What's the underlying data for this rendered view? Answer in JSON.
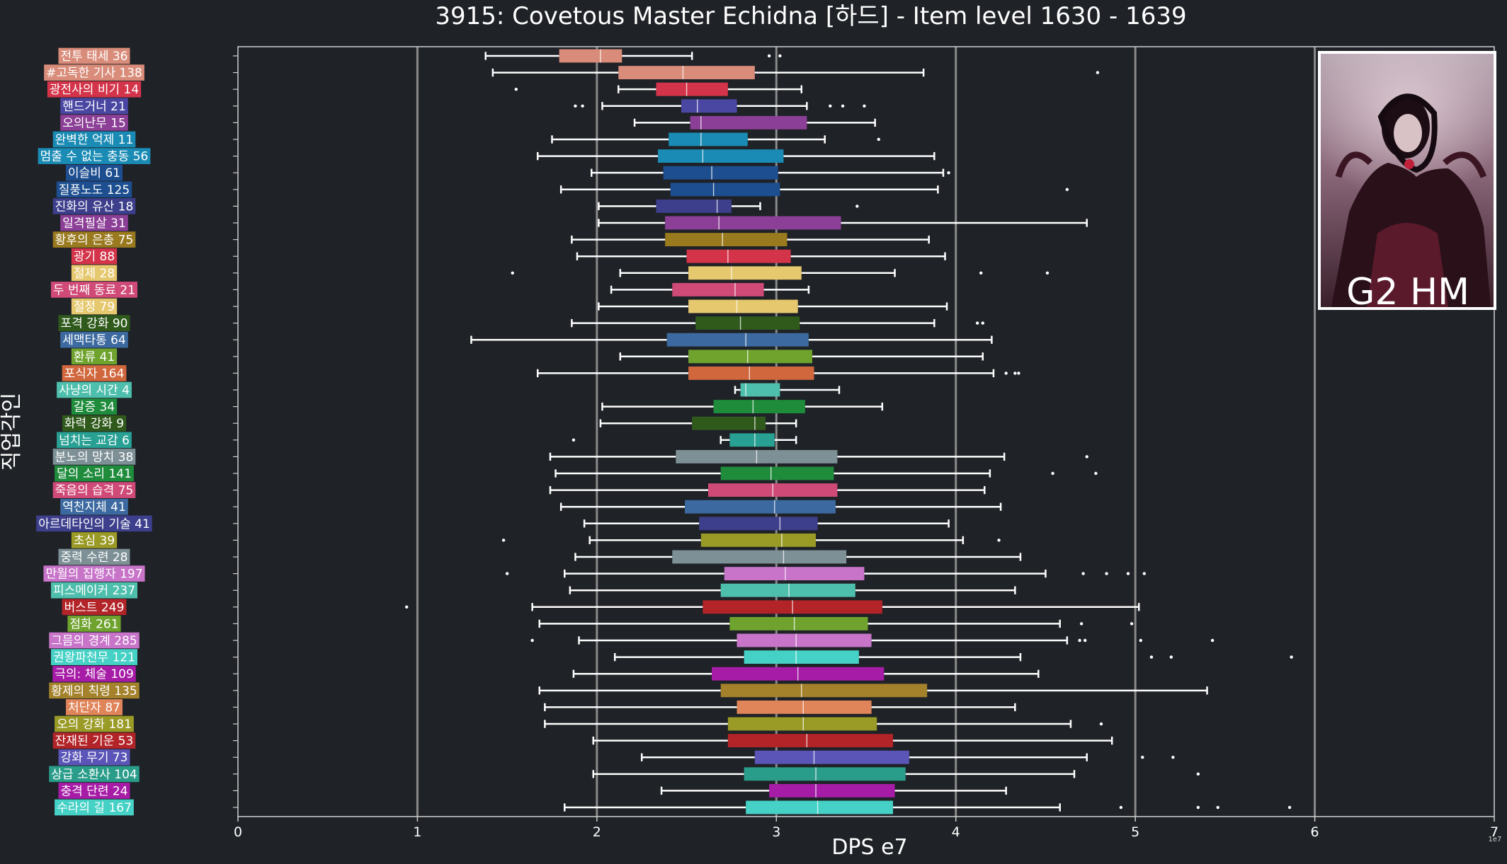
{
  "chart_data": {
    "type": "boxplot",
    "orientation": "horizontal",
    "title": "3915: Covetous Master Echidna [하드] - Item level 1630 - 1639",
    "xlabel": "DPS e7",
    "ylabel": "직업각인",
    "x_scale_note": "1e7",
    "xlim": [
      0,
      7
    ],
    "x_ticks": [
      0,
      1,
      2,
      3,
      4,
      5,
      6,
      7
    ],
    "grid": "vertical",
    "badge": "G2 HM",
    "rows": [
      {
        "label": "전투 태세 36",
        "color": "#d98c7a",
        "whislo": 1.38,
        "q1": 1.79,
        "med": 2.02,
        "q3": 2.14,
        "whishi": 2.53,
        "fliers": [
          2.96,
          3.02
        ]
      },
      {
        "label": "#고독한 기사 138",
        "color": "#d98c7a",
        "whislo": 1.42,
        "q1": 2.12,
        "med": 2.48,
        "q3": 2.88,
        "whishi": 3.82,
        "fliers": [
          4.79
        ]
      },
      {
        "label": "광전사의 비기 14",
        "color": "#d4344a",
        "whislo": 2.12,
        "q1": 2.33,
        "med": 2.5,
        "q3": 2.73,
        "whishi": 3.14,
        "fliers": [
          1.55
        ]
      },
      {
        "label": "핸드거너 21",
        "color": "#4a47a3",
        "whislo": 2.03,
        "q1": 2.47,
        "med": 2.56,
        "q3": 2.78,
        "whishi": 3.17,
        "fliers": [
          1.88,
          1.92,
          3.3,
          3.37,
          3.49
        ]
      },
      {
        "label": "오의난무 15",
        "color": "#8c3f96",
        "whislo": 2.21,
        "q1": 2.52,
        "med": 2.58,
        "q3": 3.17,
        "whishi": 3.55,
        "fliers": []
      },
      {
        "label": "완벽한 억제 11",
        "color": "#1a8bb4",
        "whislo": 1.75,
        "q1": 2.4,
        "med": 2.58,
        "q3": 2.84,
        "whishi": 3.27,
        "fliers": [
          3.57
        ]
      },
      {
        "label": "멈출 수 없는 충동 56",
        "color": "#1a8bb4",
        "whislo": 1.67,
        "q1": 2.34,
        "med": 2.59,
        "q3": 3.04,
        "whishi": 3.88,
        "fliers": []
      },
      {
        "label": "이슬비 61",
        "color": "#1d4e8f",
        "whislo": 1.97,
        "q1": 2.37,
        "med": 2.64,
        "q3": 3.01,
        "whishi": 3.93,
        "fliers": [
          3.96
        ]
      },
      {
        "label": "질풍노도 125",
        "color": "#1d4e8f",
        "whislo": 1.8,
        "q1": 2.41,
        "med": 2.65,
        "q3": 3.02,
        "whishi": 3.9,
        "fliers": [
          4.62
        ]
      },
      {
        "label": "진화의 유산 18",
        "color": "#3d3f8c",
        "whislo": 2.01,
        "q1": 2.33,
        "med": 2.67,
        "q3": 2.75,
        "whishi": 2.91,
        "fliers": [
          3.45
        ]
      },
      {
        "label": "일격필살 31",
        "color": "#8c3f96",
        "whislo": 2.01,
        "q1": 2.38,
        "med": 2.68,
        "q3": 3.36,
        "whishi": 4.73,
        "fliers": []
      },
      {
        "label": "황후의 은총 75",
        "color": "#9a7a1f",
        "whislo": 1.86,
        "q1": 2.38,
        "med": 2.7,
        "q3": 3.06,
        "whishi": 3.85,
        "fliers": []
      },
      {
        "label": "광기 88",
        "color": "#d4344a",
        "whislo": 1.89,
        "q1": 2.5,
        "med": 2.73,
        "q3": 3.08,
        "whishi": 3.94,
        "fliers": []
      },
      {
        "label": "절제 28",
        "color": "#e6c86e",
        "whislo": 2.13,
        "q1": 2.51,
        "med": 2.75,
        "q3": 3.14,
        "whishi": 3.66,
        "fliers": [
          1.53,
          4.14,
          4.51
        ]
      },
      {
        "label": "두 번째 동료 21",
        "color": "#d04a78",
        "whislo": 2.08,
        "q1": 2.42,
        "med": 2.77,
        "q3": 2.93,
        "whishi": 3.18,
        "fliers": []
      },
      {
        "label": "절정 79",
        "color": "#e6c86e",
        "whislo": 2.01,
        "q1": 2.51,
        "med": 2.78,
        "q3": 3.12,
        "whishi": 3.95,
        "fliers": []
      },
      {
        "label": "포격 강화 90",
        "color": "#2f5a1c",
        "whislo": 1.86,
        "q1": 2.55,
        "med": 2.8,
        "q3": 3.13,
        "whishi": 3.88,
        "fliers": [
          4.12,
          4.15
        ]
      },
      {
        "label": "세맥타통 64",
        "color": "#3c6aa0",
        "whislo": 1.3,
        "q1": 2.39,
        "med": 2.83,
        "q3": 3.18,
        "whishi": 4.2,
        "fliers": []
      },
      {
        "label": "환류 41",
        "color": "#6fa32e",
        "whislo": 2.13,
        "q1": 2.51,
        "med": 2.84,
        "q3": 3.2,
        "whishi": 4.15,
        "fliers": []
      },
      {
        "label": "포식자 164",
        "color": "#d0673d",
        "whislo": 1.67,
        "q1": 2.51,
        "med": 2.85,
        "q3": 3.21,
        "whishi": 4.21,
        "fliers": [
          4.28,
          4.33,
          4.35
        ]
      },
      {
        "label": "사냥의 시간 4",
        "color": "#4fbfad",
        "whislo": 2.77,
        "q1": 2.8,
        "med": 2.83,
        "q3": 3.02,
        "whishi": 3.35,
        "fliers": []
      },
      {
        "label": "갈증 34",
        "color": "#1f8c3c",
        "whislo": 2.03,
        "q1": 2.65,
        "med": 2.87,
        "q3": 3.16,
        "whishi": 3.59,
        "fliers": []
      },
      {
        "label": "화력 강화 9",
        "color": "#2f5a1c",
        "whislo": 2.02,
        "q1": 2.53,
        "med": 2.88,
        "q3": 2.94,
        "whishi": 3.11,
        "fliers": []
      },
      {
        "label": "넘치는 교감 6",
        "color": "#28a094",
        "whislo": 2.69,
        "q1": 2.74,
        "med": 2.88,
        "q3": 2.99,
        "whishi": 3.11,
        "fliers": [
          1.87
        ]
      },
      {
        "label": "분노의 망치 38",
        "color": "#7d9096",
        "whislo": 1.74,
        "q1": 2.44,
        "med": 2.89,
        "q3": 3.34,
        "whishi": 4.27,
        "fliers": [
          4.73
        ]
      },
      {
        "label": "달의 소리 141",
        "color": "#1f8c3c",
        "whislo": 1.77,
        "q1": 2.69,
        "med": 2.97,
        "q3": 3.32,
        "whishi": 4.19,
        "fliers": [
          4.54,
          4.78
        ]
      },
      {
        "label": "죽음의 습격 75",
        "color": "#d04a78",
        "whislo": 1.74,
        "q1": 2.62,
        "med": 2.98,
        "q3": 3.34,
        "whishi": 4.16,
        "fliers": []
      },
      {
        "label": "역천지체 41",
        "color": "#3c6aa0",
        "whislo": 1.8,
        "q1": 2.49,
        "med": 2.99,
        "q3": 3.33,
        "whishi": 4.25,
        "fliers": []
      },
      {
        "label": "아르데타인의 기술 41",
        "color": "#3d3f8c",
        "whislo": 1.93,
        "q1": 2.57,
        "med": 3.02,
        "q3": 3.23,
        "whishi": 3.96,
        "fliers": []
      },
      {
        "label": "초심 39",
        "color": "#9a9a26",
        "whislo": 1.96,
        "q1": 2.58,
        "med": 3.03,
        "q3": 3.22,
        "whishi": 4.04,
        "fliers": [
          1.48,
          4.24
        ]
      },
      {
        "label": "중력 수련 28",
        "color": "#7d9096",
        "whislo": 1.88,
        "q1": 2.42,
        "med": 3.04,
        "q3": 3.39,
        "whishi": 4.36,
        "fliers": []
      },
      {
        "label": "만월의 집행자 197",
        "color": "#c774c9",
        "whislo": 1.82,
        "q1": 2.71,
        "med": 3.05,
        "q3": 3.49,
        "whishi": 4.5,
        "fliers": [
          1.5,
          4.71,
          4.84,
          4.96,
          5.05
        ]
      },
      {
        "label": "피스메이커 237",
        "color": "#4fbfad",
        "whislo": 1.85,
        "q1": 2.69,
        "med": 3.07,
        "q3": 3.44,
        "whishi": 4.33,
        "fliers": []
      },
      {
        "label": "버스트 249",
        "color": "#b32428",
        "whislo": 1.64,
        "q1": 2.59,
        "med": 3.09,
        "q3": 3.59,
        "whishi": 5.02,
        "fliers": [
          0.94
        ]
      },
      {
        "label": "점화 261",
        "color": "#6fa32e",
        "whislo": 1.68,
        "q1": 2.74,
        "med": 3.1,
        "q3": 3.51,
        "whishi": 4.58,
        "fliers": [
          4.7,
          4.98
        ]
      },
      {
        "label": "그믐의 경계 285",
        "color": "#c774c9",
        "whislo": 1.9,
        "q1": 2.78,
        "med": 3.11,
        "q3": 3.53,
        "whishi": 4.62,
        "fliers": [
          1.64,
          4.69,
          4.72,
          5.03,
          5.43
        ]
      },
      {
        "label": "권왕파천무 121",
        "color": "#45d1c5",
        "whislo": 2.1,
        "q1": 2.82,
        "med": 3.11,
        "q3": 3.46,
        "whishi": 4.36,
        "fliers": [
          5.09,
          5.2,
          5.87
        ]
      },
      {
        "label": "극의: 체술 109",
        "color": "#a61ca6",
        "whislo": 1.87,
        "q1": 2.64,
        "med": 3.12,
        "q3": 3.6,
        "whishi": 4.46,
        "fliers": []
      },
      {
        "label": "황제의 칙령 135",
        "color": "#a3822b",
        "whislo": 1.68,
        "q1": 2.69,
        "med": 3.14,
        "q3": 3.84,
        "whishi": 5.4,
        "fliers": []
      },
      {
        "label": "처단자 87",
        "color": "#e0845a",
        "whislo": 1.71,
        "q1": 2.78,
        "med": 3.15,
        "q3": 3.53,
        "whishi": 4.33,
        "fliers": []
      },
      {
        "label": "오의 강화 181",
        "color": "#9a9a26",
        "whislo": 1.71,
        "q1": 2.73,
        "med": 3.15,
        "q3": 3.56,
        "whishi": 4.64,
        "fliers": [
          4.81
        ]
      },
      {
        "label": "잔재된 기운 53",
        "color": "#b32428",
        "whislo": 1.98,
        "q1": 2.73,
        "med": 3.17,
        "q3": 3.65,
        "whishi": 4.87,
        "fliers": []
      },
      {
        "label": "강화 무기 73",
        "color": "#5b55b8",
        "whislo": 2.25,
        "q1": 2.88,
        "med": 3.21,
        "q3": 3.74,
        "whishi": 4.73,
        "fliers": [
          5.04,
          5.21
        ]
      },
      {
        "label": "상급 소환사 104",
        "color": "#2a9d8a",
        "whislo": 1.98,
        "q1": 2.82,
        "med": 3.22,
        "q3": 3.72,
        "whishi": 4.66,
        "fliers": [
          5.35
        ]
      },
      {
        "label": "충격 단련 24",
        "color": "#a61ca6",
        "whislo": 2.36,
        "q1": 2.96,
        "med": 3.22,
        "q3": 3.66,
        "whishi": 4.28,
        "fliers": []
      },
      {
        "label": "수라의 길 167",
        "color": "#45d1c5",
        "whislo": 1.82,
        "q1": 2.83,
        "med": 3.23,
        "q3": 3.65,
        "whishi": 4.58,
        "fliers": [
          4.92,
          5.35,
          5.46,
          5.86
        ]
      }
    ]
  }
}
